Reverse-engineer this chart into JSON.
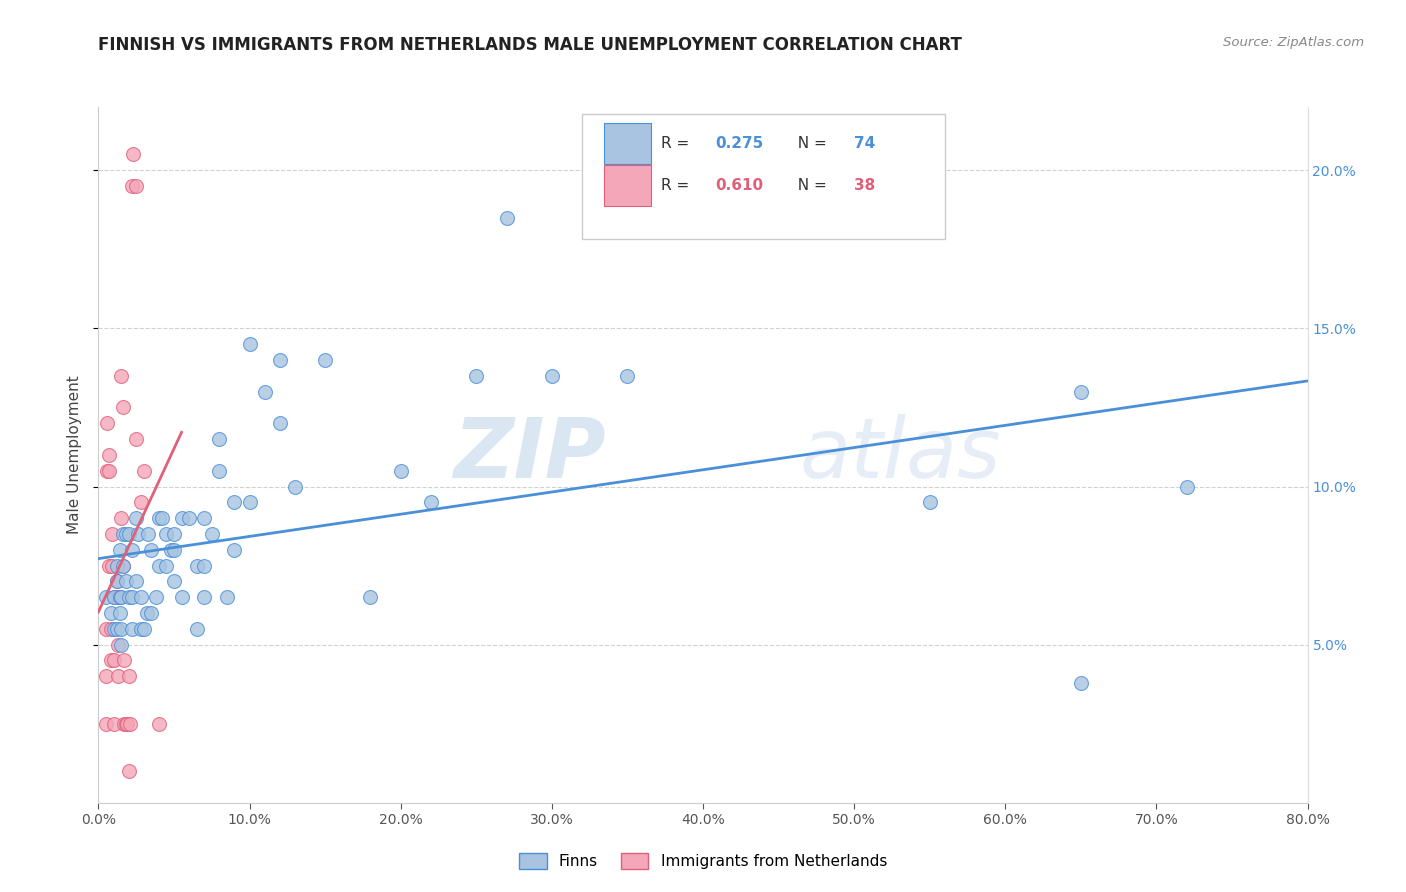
{
  "title": "FINNISH VS IMMIGRANTS FROM NETHERLANDS MALE UNEMPLOYMENT CORRELATION CHART",
  "source": "Source: ZipAtlas.com",
  "ylabel": "Male Unemployment",
  "legend_label1": "Finns",
  "legend_label2": "Immigrants from Netherlands",
  "r1": "0.275",
  "n1": "74",
  "r2": "0.610",
  "n2": "38",
  "color1": "#a8c4e0",
  "color2": "#f4a7b9",
  "line_color1": "#4a90d9",
  "line_color2": "#e0607a",
  "watermark_zip": "ZIP",
  "watermark_atlas": "atlas",
  "xlim": [
    0.0,
    0.8
  ],
  "ylim": [
    0.0,
    0.22
  ],
  "yticks": [
    0.05,
    0.1,
    0.15,
    0.2
  ],
  "xticks": [
    0.0,
    0.1,
    0.2,
    0.3,
    0.4,
    0.5,
    0.6,
    0.7,
    0.8
  ],
  "finns_x": [
    0.005,
    0.008,
    0.01,
    0.01,
    0.012,
    0.012,
    0.012,
    0.014,
    0.014,
    0.014,
    0.015,
    0.015,
    0.015,
    0.016,
    0.016,
    0.018,
    0.018,
    0.02,
    0.02,
    0.022,
    0.022,
    0.022,
    0.025,
    0.025,
    0.026,
    0.028,
    0.028,
    0.03,
    0.032,
    0.033,
    0.035,
    0.035,
    0.038,
    0.04,
    0.04,
    0.042,
    0.045,
    0.045,
    0.048,
    0.05,
    0.05,
    0.05,
    0.055,
    0.055,
    0.06,
    0.065,
    0.065,
    0.07,
    0.07,
    0.07,
    0.075,
    0.08,
    0.08,
    0.085,
    0.09,
    0.09,
    0.1,
    0.1,
    0.11,
    0.12,
    0.12,
    0.13,
    0.15,
    0.18,
    0.2,
    0.22,
    0.25,
    0.27,
    0.3,
    0.35,
    0.55,
    0.65,
    0.65,
    0.72
  ],
  "finns_y": [
    0.065,
    0.06,
    0.055,
    0.065,
    0.07,
    0.075,
    0.055,
    0.08,
    0.065,
    0.06,
    0.065,
    0.055,
    0.05,
    0.085,
    0.075,
    0.085,
    0.07,
    0.065,
    0.085,
    0.08,
    0.065,
    0.055,
    0.09,
    0.07,
    0.085,
    0.065,
    0.055,
    0.055,
    0.06,
    0.085,
    0.08,
    0.06,
    0.065,
    0.09,
    0.075,
    0.09,
    0.085,
    0.075,
    0.08,
    0.085,
    0.08,
    0.07,
    0.09,
    0.065,
    0.09,
    0.055,
    0.075,
    0.09,
    0.065,
    0.075,
    0.085,
    0.105,
    0.115,
    0.065,
    0.095,
    0.08,
    0.145,
    0.095,
    0.13,
    0.12,
    0.14,
    0.1,
    0.14,
    0.065,
    0.105,
    0.095,
    0.135,
    0.185,
    0.135,
    0.135,
    0.095,
    0.13,
    0.038,
    0.1
  ],
  "immigrants_x": [
    0.005,
    0.005,
    0.005,
    0.006,
    0.006,
    0.007,
    0.007,
    0.007,
    0.008,
    0.008,
    0.009,
    0.009,
    0.01,
    0.01,
    0.01,
    0.012,
    0.012,
    0.013,
    0.013,
    0.014,
    0.015,
    0.015,
    0.016,
    0.016,
    0.017,
    0.017,
    0.018,
    0.019,
    0.02,
    0.02,
    0.021,
    0.022,
    0.023,
    0.025,
    0.025,
    0.028,
    0.03,
    0.04
  ],
  "immigrants_y": [
    0.04,
    0.055,
    0.025,
    0.105,
    0.12,
    0.105,
    0.11,
    0.075,
    0.055,
    0.045,
    0.085,
    0.075,
    0.065,
    0.045,
    0.025,
    0.065,
    0.07,
    0.05,
    0.04,
    0.065,
    0.09,
    0.135,
    0.125,
    0.075,
    0.045,
    0.025,
    0.025,
    0.025,
    0.01,
    0.04,
    0.025,
    0.195,
    0.205,
    0.195,
    0.115,
    0.095,
    0.105,
    0.025
  ]
}
